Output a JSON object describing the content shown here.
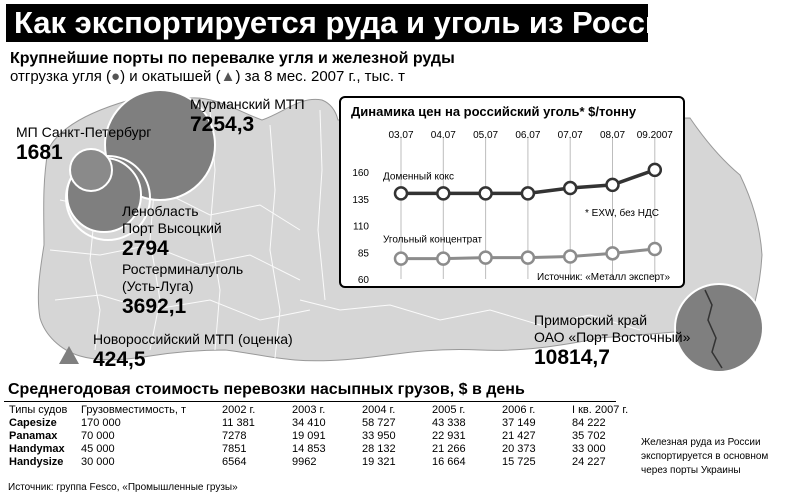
{
  "header": {
    "title": "Как экспортируется руда и уголь из России",
    "subtitle": "Крупнейшие порты по перевалке угля и железной руды",
    "legend_prefix": "отгрузка угля (",
    "legend_mid": ") и окатышей (",
    "legend_suffix": ") за 8 мес. 2007 г., тыс. т",
    "coal_marker": "●",
    "pellet_marker": "▲"
  },
  "ports": [
    {
      "name": "Мурманский МТП",
      "value": "7254,3",
      "cargo": "coal"
    },
    {
      "name": "МП Санкт-Петербург",
      "value": "1681",
      "cargo": "coal"
    },
    {
      "name": "Ленобласть\nПорт Высоцкий",
      "value": "2794",
      "cargo": "coal"
    },
    {
      "name": "Ростерминалуголь\n(Усть-Луга)",
      "value": "3692,1",
      "cargo": "coal"
    },
    {
      "name": "Новороссийский МТП (оценка)",
      "value": "424,5",
      "cargo": "pellets"
    },
    {
      "name": "Приморский край\nОАО «Порт Восточный»",
      "value": "10814,7",
      "cargo": "coal"
    }
  ],
  "chart_data": {
    "type": "line",
    "title": "Динамика цен на российский уголь* $/тонну",
    "categories": [
      "03.07",
      "04.07",
      "05.07",
      "06.07",
      "07.07",
      "08.07",
      "09.2007"
    ],
    "ylim": [
      60,
      160
    ],
    "yticks": [
      160,
      135,
      110,
      85,
      60
    ],
    "series": [
      {
        "name": "Доменный кокс",
        "values": [
          140,
          140,
          140,
          140,
          145,
          148,
          162
        ],
        "color": "#333333"
      },
      {
        "name": "Угольный концентрат",
        "values": [
          79,
          79,
          80,
          80,
          81,
          84,
          88
        ],
        "color": "#8c8c8c"
      }
    ],
    "note": "* EXW, без НДС",
    "source": "Источник: «Металл эксперт»"
  },
  "table": {
    "title": "Среднегодовая стоимость перевозки насыпных грузов, $ в день",
    "headers": [
      "Типы судов",
      "Грузовместимость, т",
      "2002 г.",
      "2003 г.",
      "2004 г.",
      "2005 г.",
      "2006 г.",
      "I кв. 2007 г."
    ],
    "rows": [
      [
        "Capesize",
        "170 000",
        "11 381",
        "34 410",
        "58 727",
        "43 338",
        "37 149",
        "84 222"
      ],
      [
        "Panamax",
        "70 000",
        "7278",
        "19 091",
        "33 950",
        "22 931",
        "21 427",
        "35 702"
      ],
      [
        "Handymax",
        "45 000",
        "7851",
        "14 853",
        "28 132",
        "21 266",
        "20 373",
        "33 000"
      ],
      [
        "Handysize",
        "30 000",
        "6564",
        "9962",
        "19 321",
        "16 664",
        "15 725",
        "24 227"
      ]
    ],
    "source": "Источник: группа Fesco, «Промышленные грузы»"
  },
  "side_note": "Железная руда из России экспортируется в основном через порты Украины",
  "colors": {
    "map_fill": "#d9d9d9",
    "bubble": "#7a7a7a",
    "title_bg": "#000000"
  }
}
